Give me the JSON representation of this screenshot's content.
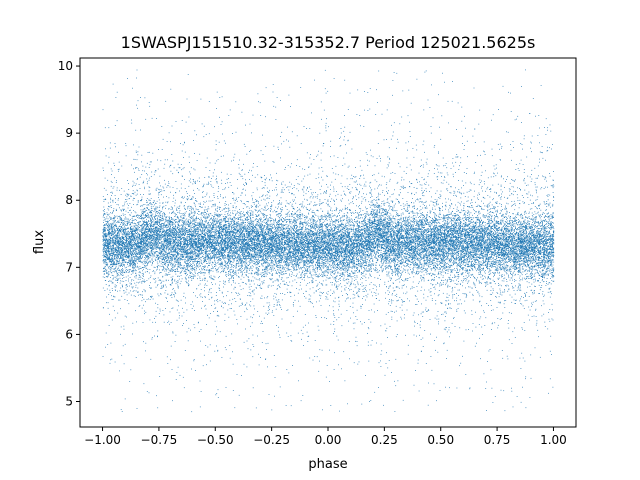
{
  "chart_data": {
    "type": "scatter",
    "title": "1SWASPJ151510.32-315352.7 Period 125021.5625s",
    "xlabel": "phase",
    "ylabel": "flux",
    "xlim": [
      -1.1,
      1.1
    ],
    "ylim": [
      4.62,
      10.12
    ],
    "x_ticks": [
      -1.0,
      -0.75,
      -0.5,
      -0.25,
      0.0,
      0.25,
      0.5,
      0.75,
      1.0
    ],
    "x_tick_labels": [
      "−1.00",
      "−0.75",
      "−0.50",
      "−0.25",
      "0.00",
      "0.25",
      "0.50",
      "0.75",
      "1.00"
    ],
    "y_ticks": [
      5,
      6,
      7,
      8,
      9,
      10
    ],
    "y_tick_labels": [
      "5",
      "6",
      "7",
      "8",
      "9",
      "10"
    ],
    "grid": false,
    "point_color": "#1f77b4",
    "phase_range": [
      -1.0,
      1.0
    ],
    "flux_range": [
      4.85,
      9.95
    ],
    "flux_median": 7.35,
    "dense_band": [
      6.95,
      7.8
    ],
    "brightening_clumps_phase": [
      -0.78,
      0.22
    ],
    "dimming_clumps_phase": [
      -0.55,
      0.45
    ],
    "series": [
      {
        "description_points": "approx. 30000 small points; folded light curve symmetric about phase 0 (x and x±1 repeat)",
        "values": [
          {
            "x": -1.0,
            "y": 7.35
          },
          {
            "x": -0.78,
            "y": 7.55
          },
          {
            "x": -0.5,
            "y": 7.25
          },
          {
            "x": -0.25,
            "y": 7.3
          },
          {
            "x": 0.0,
            "y": 7.3
          },
          {
            "x": 0.22,
            "y": 7.55
          },
          {
            "x": 0.5,
            "y": 7.3
          },
          {
            "x": 0.75,
            "y": 7.35
          },
          {
            "x": 1.0,
            "y": 7.35
          }
        ]
      }
    ]
  }
}
